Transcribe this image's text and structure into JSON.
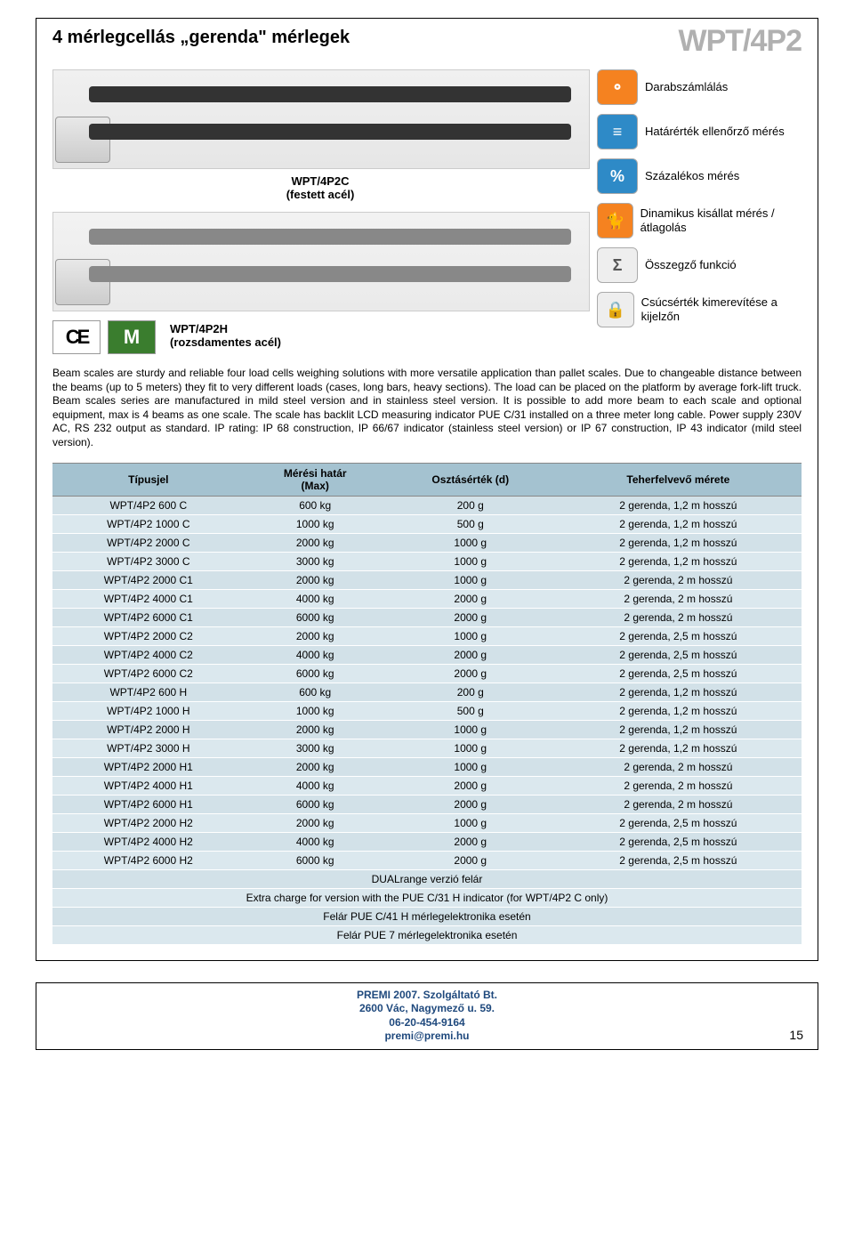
{
  "header": {
    "title": "4 mérlegcellás „gerenda\" mérlegek",
    "model": "WPT/4P2"
  },
  "products": {
    "p1_label": "WPT/4P2C\n(festett acél)",
    "p2_label": "WPT/4P2H\n(rozsdamentes acél)"
  },
  "cert": {
    "ce": "CE",
    "m": "M"
  },
  "features": [
    {
      "icon_bg": "#f58220",
      "glyph": "⚬",
      "label": "Darabszámlálás"
    },
    {
      "icon_bg": "#2e8ac7",
      "glyph": "≡",
      "label": "Határérték ellenőrző mérés"
    },
    {
      "icon_bg": "#2e8ac7",
      "glyph": "%",
      "label": "Százalékos mérés"
    },
    {
      "icon_bg": "#f58220",
      "glyph": "🐈",
      "label": "Dinamikus kisállat mérés / átlagolás"
    },
    {
      "icon_bg": "#eeeeee",
      "glyph": "Σ",
      "label": "Összegző funkció",
      "dark": true
    },
    {
      "icon_bg": "#eeeeee",
      "glyph": "🔒",
      "label": "Csúcsérték kimerevítése a kijelzőn",
      "dark": true
    }
  ],
  "body_text": "Beam scales are sturdy and reliable four load cells weighing solutions with more versatile application than pallet scales. Due to changeable distance between the beams (up to 5 meters) they fit to very different loads (cases, long bars, heavy sections). The load can be placed on the platform by average fork-lift truck. Beam scales series are manufactured in mild steel version and in stainless steel version. It is possible to add more beam to each scale and optional equipment, max is 4 beams as one scale. The scale has backlit LCD measuring indicator PUE C/31 installed on a three meter long cable. Power supply 230V AC, RS 232 output as standard. IP rating: IP 68 construction, IP 66/67 indicator (stainless steel version) or IP 67 construction, IP 43 indicator (mild steel version).",
  "table": {
    "columns": [
      "Típusjel",
      "Mérési határ (Max)",
      "Osztásérték (d)",
      "Teherfelvevő mérete"
    ],
    "rows": [
      [
        "WPT/4P2 600 C",
        "600 kg",
        "200 g",
        "2 gerenda, 1,2 m hosszú"
      ],
      [
        "WPT/4P2 1000 C",
        "1000 kg",
        "500 g",
        "2 gerenda, 1,2 m hosszú"
      ],
      [
        "WPT/4P2 2000 C",
        "2000 kg",
        "1000 g",
        "2 gerenda, 1,2 m hosszú"
      ],
      [
        "WPT/4P2 3000 C",
        "3000 kg",
        "1000 g",
        "2 gerenda, 1,2 m hosszú"
      ],
      [
        "WPT/4P2 2000 C1",
        "2000 kg",
        "1000 g",
        "2 gerenda, 2 m hosszú"
      ],
      [
        "WPT/4P2 4000 C1",
        "4000 kg",
        "2000 g",
        "2 gerenda, 2 m hosszú"
      ],
      [
        "WPT/4P2 6000 C1",
        "6000 kg",
        "2000 g",
        "2 gerenda, 2 m hosszú"
      ],
      [
        "WPT/4P2 2000 C2",
        "2000 kg",
        "1000 g",
        "2 gerenda, 2,5 m hosszú"
      ],
      [
        "WPT/4P2 4000 C2",
        "4000 kg",
        "2000 g",
        "2 gerenda, 2,5 m hosszú"
      ],
      [
        "WPT/4P2 6000 C2",
        "6000 kg",
        "2000 g",
        "2 gerenda, 2,5 m hosszú"
      ],
      [
        "WPT/4P2 600 H",
        "600 kg",
        "200 g",
        "2 gerenda, 1,2 m hosszú"
      ],
      [
        "WPT/4P2 1000 H",
        "1000 kg",
        "500 g",
        "2 gerenda, 1,2 m hosszú"
      ],
      [
        "WPT/4P2 2000 H",
        "2000 kg",
        "1000 g",
        "2 gerenda, 1,2 m hosszú"
      ],
      [
        "WPT/4P2 3000 H",
        "3000 kg",
        "1000 g",
        "2 gerenda, 1,2 m hosszú"
      ],
      [
        "WPT/4P2 2000 H1",
        "2000 kg",
        "1000 g",
        "2 gerenda, 2 m hosszú"
      ],
      [
        "WPT/4P2 4000 H1",
        "4000 kg",
        "2000 g",
        "2 gerenda, 2 m hosszú"
      ],
      [
        "WPT/4P2 6000 H1",
        "6000 kg",
        "2000 g",
        "2 gerenda, 2 m hosszú"
      ],
      [
        "WPT/4P2 2000 H2",
        "2000 kg",
        "1000 g",
        "2 gerenda, 2,5 m hosszú"
      ],
      [
        "WPT/4P2 4000 H2",
        "4000 kg",
        "2000 g",
        "2 gerenda, 2,5 m hosszú"
      ],
      [
        "WPT/4P2 6000 H2",
        "6000 kg",
        "2000 g",
        "2 gerenda, 2,5 m hosszú"
      ]
    ],
    "footer_rows": [
      "DUALrange verzió felár",
      "Extra charge for version with the PUE C/31 H indicator (for WPT/4P2 C only)",
      "Felár PUE C/41 H mérlegelektronika esetén",
      "Felár PUE 7 mérlegelektronika esetén"
    ]
  },
  "footer": {
    "line1": "PREMI 2007. Szolgáltató Bt.",
    "line2": "2600 Vác, Nagymező u. 59.",
    "line3": "06-20-454-9164",
    "line4": "premi@premi.hu",
    "page_num": "15"
  }
}
